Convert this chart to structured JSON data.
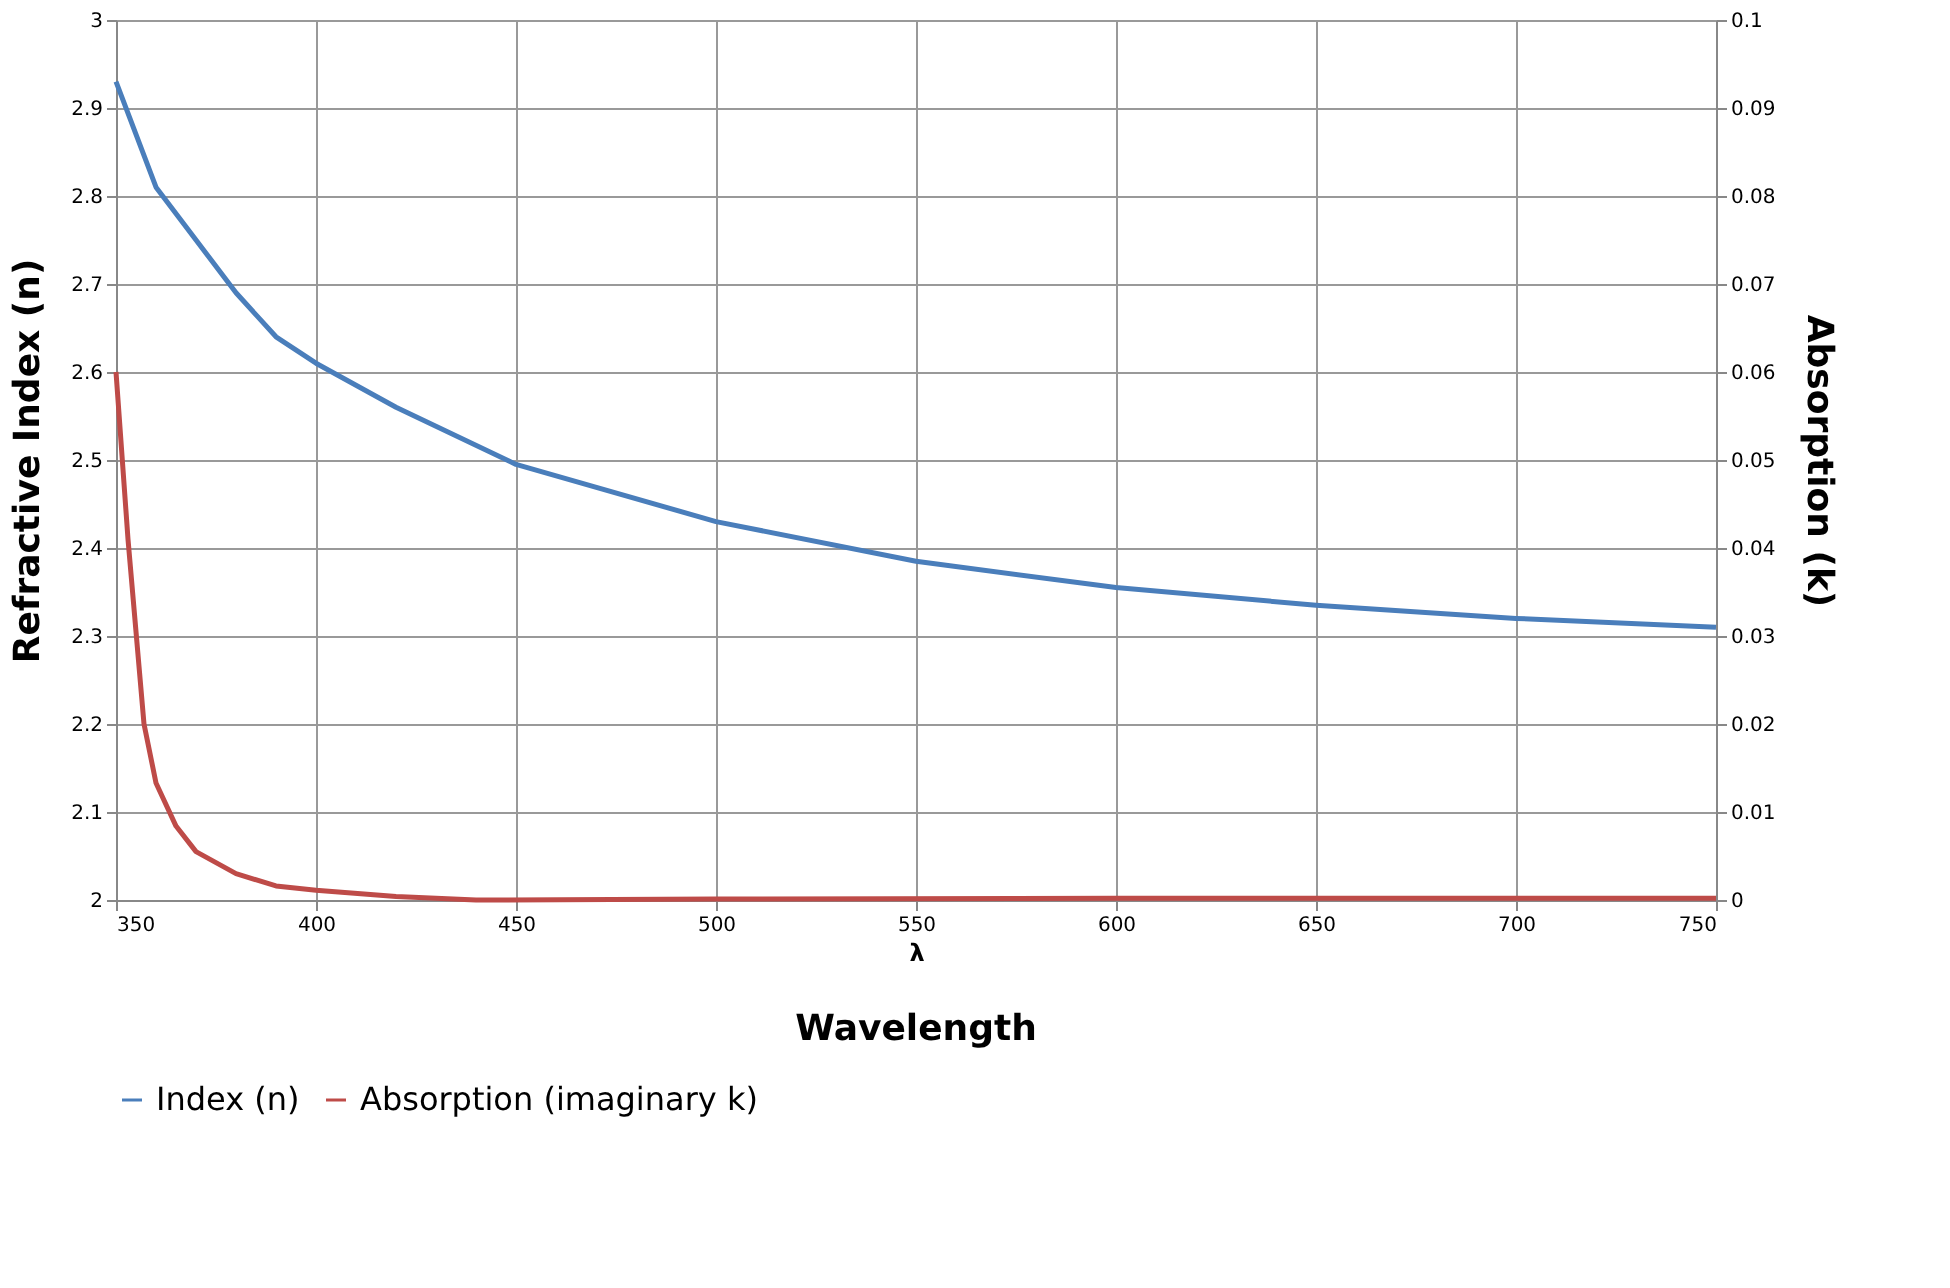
{
  "chart_data": {
    "type": "line",
    "xlabel": "λ",
    "ylabel": "Refractive Index (n)",
    "y2label": "Absorption (k)",
    "annotations": [
      "Wavelength"
    ],
    "xlim": [
      350,
      750
    ],
    "xticks": [
      350,
      400,
      450,
      500,
      550,
      600,
      650,
      700,
      750
    ],
    "ylim": [
      2,
      3
    ],
    "yticks": [
      2,
      2.1,
      2.2,
      2.3,
      2.4,
      2.5,
      2.6,
      2.7,
      2.8,
      2.9,
      3
    ],
    "y2lim": [
      0,
      0.1
    ],
    "y2ticks": [
      0,
      0.01,
      0.02,
      0.03,
      0.04,
      0.05,
      0.06,
      0.07,
      0.08,
      0.09,
      0.1
    ],
    "grid": true,
    "legend": "bottom",
    "marker": "none",
    "line_style": "solid",
    "series": [
      {
        "name": "Index (n)",
        "color": "#4a7ebb",
        "x": [
          350,
          360,
          370,
          380,
          390,
          400,
          420,
          450,
          500,
          550,
          600,
          650,
          700,
          750
        ],
        "values": [
          2.93,
          2.81,
          2.75,
          2.69,
          2.64,
          2.61,
          2.56,
          2.495,
          2.43,
          2.385,
          2.355,
          2.335,
          2.32,
          2.31
        ]
      },
      {
        "name": "Absorption (imaginary k)",
        "color": "#be4b48",
        "axis": "y2",
        "x": [
          350,
          353,
          357,
          360,
          365,
          370,
          380,
          390,
          400,
          420,
          440,
          500,
          600,
          750
        ],
        "values": [
          0.06,
          0.041,
          0.02,
          0.0133,
          0.0084,
          0.0055,
          0.003,
          0.0016,
          0.0011,
          0.0004,
          0,
          0.0001,
          0.0002,
          0.0002
        ]
      }
    ]
  }
}
